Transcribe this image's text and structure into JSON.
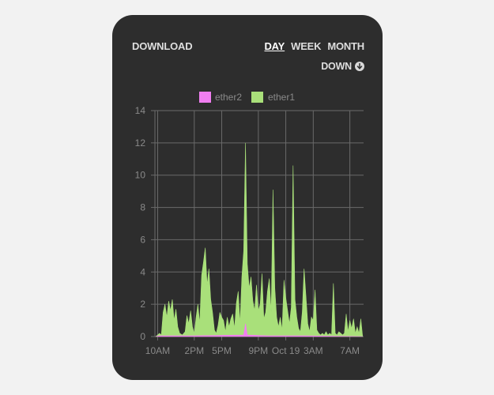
{
  "widget": {
    "title": "DOWNLOAD",
    "tabs": [
      {
        "label": "DAY",
        "active": true
      },
      {
        "label": "WEEK",
        "active": false
      },
      {
        "label": "MONTH",
        "active": false
      }
    ],
    "direction_label": "DOWN",
    "direction_icon": "arrow-down-circle-icon"
  },
  "colors": {
    "card_background": "#2d2d2d",
    "ether1": "#a9e07a",
    "ether2": "#f07ef0",
    "grid": "#6a6a6a"
  },
  "chart_data": {
    "type": "area",
    "title": "",
    "xlabel": "",
    "ylabel": "",
    "ylim": [
      0,
      14
    ],
    "yticks": [
      0,
      2,
      4,
      6,
      8,
      10,
      12,
      14
    ],
    "xlim_hours": [
      9.7,
      32.5
    ],
    "xticks": [
      {
        "label": "10AM",
        "hour": 10
      },
      {
        "label": "2PM",
        "hour": 14
      },
      {
        "label": "5PM",
        "hour": 17
      },
      {
        "label": "9PM",
        "hour": 21
      },
      {
        "label": "Oct 19",
        "hour": 24
      },
      {
        "label": "3AM",
        "hour": 27
      },
      {
        "label": "7AM",
        "hour": 31
      }
    ],
    "legend": {
      "position": "top-center",
      "entries": [
        "ether2",
        "ether1"
      ]
    },
    "grid": true,
    "series": [
      {
        "name": "ether1",
        "color": "#a9e07a",
        "points": [
          [
            9.8,
            0
          ],
          [
            10.2,
            0.2
          ],
          [
            10.4,
            0.1
          ],
          [
            10.6,
            1.5
          ],
          [
            10.8,
            2.0
          ],
          [
            11.0,
            1.2
          ],
          [
            11.2,
            2.2
          ],
          [
            11.4,
            1.6
          ],
          [
            11.6,
            2.3
          ],
          [
            11.8,
            1.0
          ],
          [
            12.0,
            1.7
          ],
          [
            12.2,
            0.6
          ],
          [
            12.4,
            0.2
          ],
          [
            12.7,
            0.1
          ],
          [
            13.0,
            0.3
          ],
          [
            13.2,
            1.3
          ],
          [
            13.4,
            0.8
          ],
          [
            13.6,
            1.6
          ],
          [
            13.8,
            0.6
          ],
          [
            14.0,
            0.2
          ],
          [
            14.2,
            1.2
          ],
          [
            14.4,
            2.0
          ],
          [
            14.6,
            0.8
          ],
          [
            14.8,
            3.8
          ],
          [
            15.0,
            4.6
          ],
          [
            15.2,
            5.5
          ],
          [
            15.4,
            3.2
          ],
          [
            15.6,
            4.2
          ],
          [
            15.8,
            2.3
          ],
          [
            16.0,
            1.5
          ],
          [
            16.2,
            0.4
          ],
          [
            16.4,
            0.2
          ],
          [
            16.6,
            0.7
          ],
          [
            16.8,
            1.5
          ],
          [
            17.0,
            1.2
          ],
          [
            17.2,
            1.0
          ],
          [
            17.4,
            0.3
          ],
          [
            17.6,
            1.2
          ],
          [
            17.8,
            0.6
          ],
          [
            18.0,
            1.1
          ],
          [
            18.2,
            1.4
          ],
          [
            18.4,
            0.5
          ],
          [
            18.6,
            2.1
          ],
          [
            18.8,
            2.8
          ],
          [
            19.0,
            0.8
          ],
          [
            19.2,
            3.7
          ],
          [
            19.4,
            5.3
          ],
          [
            19.6,
            12.0
          ],
          [
            19.8,
            4.5
          ],
          [
            20.0,
            3.0
          ],
          [
            20.2,
            3.7
          ],
          [
            20.4,
            2.2
          ],
          [
            20.6,
            1.6
          ],
          [
            20.8,
            3.2
          ],
          [
            21.0,
            1.6
          ],
          [
            21.2,
            2.0
          ],
          [
            21.4,
            3.9
          ],
          [
            21.6,
            1.1
          ],
          [
            21.8,
            1.5
          ],
          [
            22.0,
            2.8
          ],
          [
            22.2,
            3.6
          ],
          [
            22.4,
            1.5
          ],
          [
            22.6,
            9.1
          ],
          [
            22.8,
            3.0
          ],
          [
            23.0,
            1.2
          ],
          [
            23.2,
            0.6
          ],
          [
            23.4,
            1.2
          ],
          [
            23.6,
            0.4
          ],
          [
            23.8,
            3.5
          ],
          [
            24.0,
            2.4
          ],
          [
            24.2,
            1.6
          ],
          [
            24.4,
            0.8
          ],
          [
            24.6,
            1.8
          ],
          [
            24.8,
            10.6
          ],
          [
            25.0,
            2.3
          ],
          [
            25.2,
            1.2
          ],
          [
            25.4,
            0.5
          ],
          [
            25.6,
            0.3
          ],
          [
            25.8,
            1.5
          ],
          [
            26.0,
            4.2
          ],
          [
            26.2,
            2.5
          ],
          [
            26.4,
            0.8
          ],
          [
            26.6,
            0.3
          ],
          [
            26.8,
            1.2
          ],
          [
            27.0,
            1.0
          ],
          [
            27.2,
            2.9
          ],
          [
            27.4,
            0.4
          ],
          [
            27.6,
            0.2
          ],
          [
            27.8,
            0.1
          ],
          [
            28.0,
            0.2
          ],
          [
            28.2,
            0.1
          ],
          [
            28.4,
            0.3
          ],
          [
            28.6,
            0.1
          ],
          [
            28.8,
            0.2
          ],
          [
            29.0,
            0.1
          ],
          [
            29.2,
            3.3
          ],
          [
            29.4,
            0.2
          ],
          [
            29.6,
            0.1
          ],
          [
            29.8,
            0.3
          ],
          [
            30.0,
            0.2
          ],
          [
            30.2,
            0.1
          ],
          [
            30.4,
            0.2
          ],
          [
            30.6,
            1.4
          ],
          [
            30.8,
            0.3
          ],
          [
            31.0,
            1.0
          ],
          [
            31.2,
            0.5
          ],
          [
            31.4,
            1.1
          ],
          [
            31.6,
            0.2
          ],
          [
            31.8,
            0.6
          ],
          [
            32.0,
            0.2
          ],
          [
            32.2,
            1.1
          ],
          [
            32.4,
            0
          ]
        ]
      },
      {
        "name": "ether2",
        "color": "#f07ef0",
        "points": [
          [
            9.8,
            0
          ],
          [
            10.2,
            0.05
          ],
          [
            11.0,
            0.05
          ],
          [
            14.0,
            0.05
          ],
          [
            19.4,
            0.1
          ],
          [
            19.6,
            0.8
          ],
          [
            19.8,
            0.1
          ],
          [
            22.0,
            0.05
          ],
          [
            26.0,
            0.05
          ],
          [
            32.4,
            0
          ]
        ]
      }
    ]
  }
}
